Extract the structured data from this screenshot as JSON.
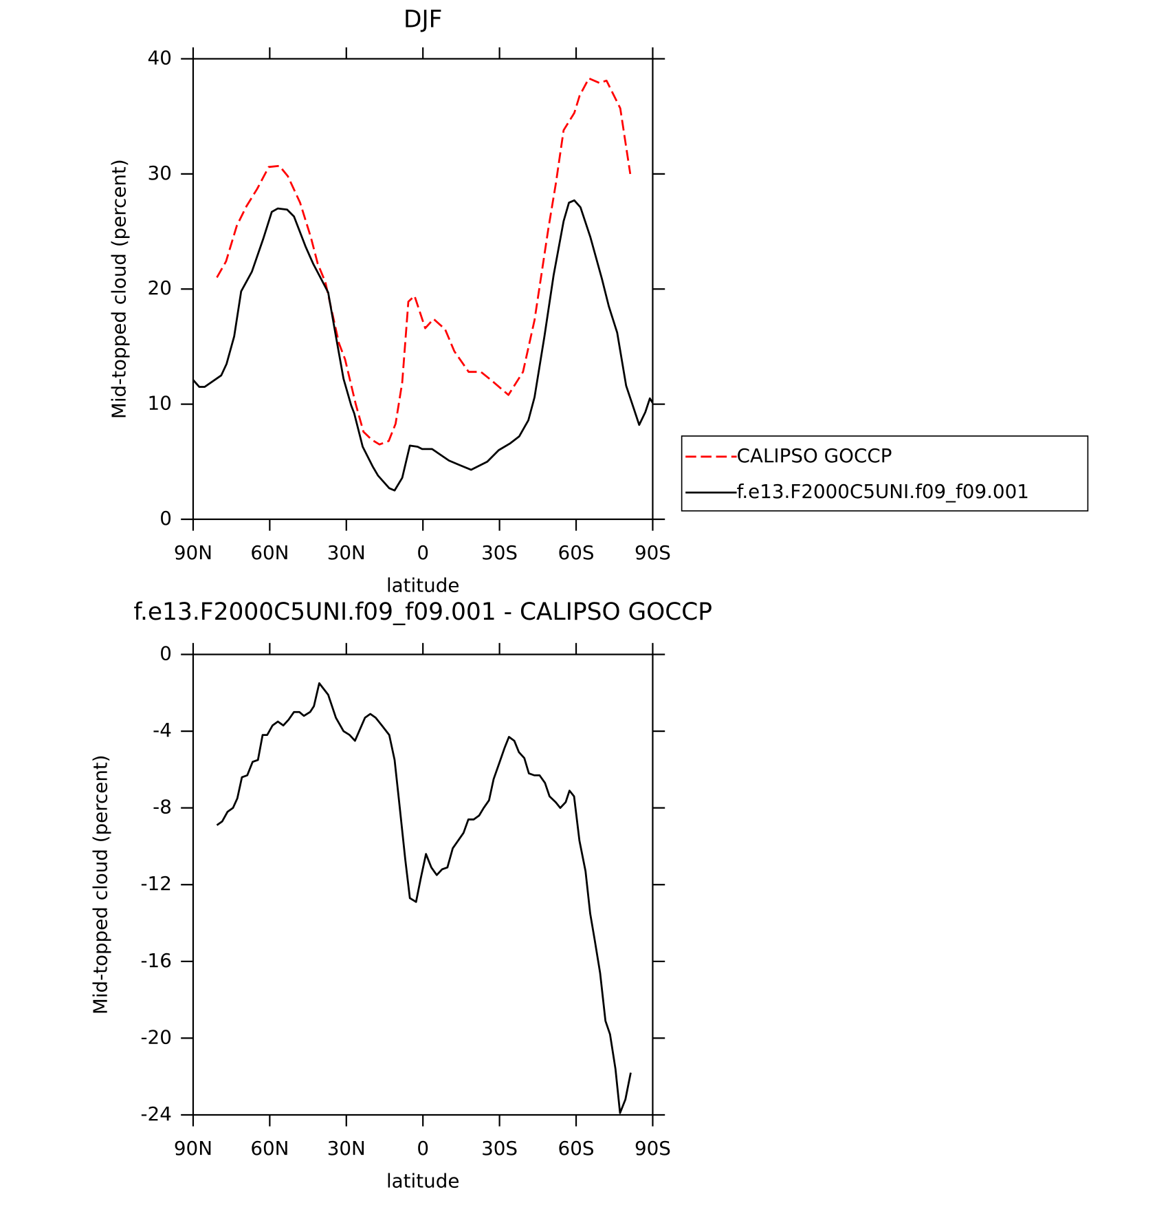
{
  "chart_data": [
    {
      "type": "line",
      "title": "DJF",
      "xlabel": "latitude",
      "ylabel": "Mid-topped cloud (percent)",
      "xlim": [
        90,
        -90
      ],
      "xticks": [
        {
          "value": 90,
          "label": "90N"
        },
        {
          "value": 60,
          "label": "60N"
        },
        {
          "value": 30,
          "label": "30N"
        },
        0,
        {
          "value": -30,
          "label": "30S"
        },
        {
          "value": -60,
          "label": "60S"
        },
        {
          "value": -90,
          "label": "90S"
        }
      ],
      "ylim": [
        0,
        40
      ],
      "yticks": [
        0,
        10,
        20,
        30,
        40
      ],
      "legend": "right",
      "series": [
        {
          "name": "CALIPSO GOCCP",
          "color": "#ff0000",
          "linestyle": "dashed",
          "x": [
            80.7,
            77.1,
            72.9,
            69.1,
            64.9,
            60.4,
            56.2,
            52.9,
            48.1,
            43.9,
            41.2,
            38.2,
            35.2,
            32.9,
            30.5,
            26.3,
            23.3,
            20.0,
            17.0,
            13.4,
            10.7,
            8.1,
            5.7,
            3.3,
            -0.9,
            -4.2,
            -8.7,
            -12.3,
            -17.9,
            -22.7,
            -27.2,
            -33.5,
            -39.2,
            -43.7,
            -49.1,
            -52.1,
            -55.1,
            -59.3,
            -61.4,
            -65.0,
            -69.2,
            -71.9,
            -73.7,
            -77.3,
            -81.2
          ],
          "values": [
            21.0,
            22.4,
            25.5,
            27.2,
            28.7,
            30.6,
            30.7,
            29.8,
            27.5,
            24.5,
            22.2,
            20.6,
            17.6,
            15.3,
            13.9,
            10.0,
            7.6,
            6.9,
            6.5,
            6.8,
            8.3,
            11.9,
            18.9,
            19.4,
            16.6,
            17.4,
            16.5,
            14.6,
            12.8,
            12.8,
            12.0,
            10.8,
            12.8,
            17.3,
            25.2,
            29.2,
            33.8,
            35.3,
            36.8,
            38.3,
            37.9,
            38.1,
            37.3,
            35.7,
            30.0
          ]
        },
        {
          "name": "f.e13.F2000C5UNI.f09_f09.001",
          "color": "#000000",
          "linestyle": "solid",
          "x": [
            90,
            87.6,
            85.5,
            79,
            76.9,
            73.9,
            71.2,
            67,
            62.5,
            59.2,
            56.8,
            53.2,
            50.5,
            46,
            43,
            39.2,
            37.1,
            34.1,
            31.1,
            28.1,
            26.9,
            23.6,
            19.7,
            17.6,
            13.2,
            11.1,
            8.1,
            5.1,
            2.1,
            0.3,
            -3.6,
            -10.2,
            -14.4,
            -18.9,
            -25.2,
            -29.7,
            -34.2,
            -37.7,
            -41.3,
            -43.7,
            -47.6,
            -51.2,
            -55.1,
            -57.2,
            -59.3,
            -61.7,
            -65.6,
            -70.1,
            -72.8,
            -76.1,
            -79.6,
            -82.6,
            -84.7,
            -87.1,
            -88.9,
            -90
          ],
          "values": [
            12.1,
            11.5,
            11.5,
            12.5,
            13.5,
            15.9,
            19.8,
            21.5,
            24.4,
            26.7,
            27.0,
            26.9,
            26.3,
            23.7,
            22.2,
            20.6,
            19.7,
            15.9,
            12.2,
            9.9,
            9.2,
            6.3,
            4.6,
            3.8,
            2.7,
            2.5,
            3.6,
            6.4,
            6.3,
            6.1,
            6.1,
            5.1,
            4.7,
            4.3,
            5.0,
            6.0,
            6.6,
            7.2,
            8.6,
            10.6,
            15.9,
            21.2,
            25.9,
            27.5,
            27.7,
            27.1,
            24.5,
            20.9,
            18.5,
            16.2,
            11.6,
            9.6,
            8.2,
            9.3,
            10.5,
            10.1
          ]
        }
      ]
    },
    {
      "type": "line",
      "title": "f.e13.F2000C5UNI.f09_f09.001 - CALIPSO GOCCP",
      "xlabel": "latitude",
      "ylabel": "Mid-topped cloud (percent)",
      "xlim": [
        90,
        -90
      ],
      "xticks": [
        {
          "value": 90,
          "label": "90N"
        },
        {
          "value": 60,
          "label": "60N"
        },
        {
          "value": 30,
          "label": "30N"
        },
        0,
        {
          "value": -30,
          "label": "30S"
        },
        {
          "value": -60,
          "label": "60S"
        },
        {
          "value": -90,
          "label": "90S"
        }
      ],
      "ylim": [
        -24,
        0
      ],
      "yticks": [
        -24,
        -20,
        -16,
        -12,
        -8,
        -4,
        0
      ],
      "series": [
        {
          "color": "#000000",
          "linestyle": "solid",
          "x": [
            80.7,
            78.6,
            76.5,
            74.4,
            72.7,
            70.9,
            68.8,
            66.7,
            64.6,
            62.8,
            61.0,
            58.9,
            56.8,
            54.7,
            52.6,
            50.5,
            48.4,
            46.6,
            44.2,
            42.7,
            40.6,
            37.1,
            34.1,
            31.1,
            28.7,
            26.6,
            22.7,
            20.6,
            18.5,
            16.1,
            13.2,
            11.1,
            9.3,
            6.9,
            5.1,
            2.7,
            0.9,
            -1.2,
            -3.3,
            -5.4,
            -7.5,
            -9.6,
            -11.7,
            -13.8,
            -15.9,
            -17.8,
            -19.9,
            -22.0,
            -23.8,
            -25.9,
            -27.7,
            -29.8,
            -31.9,
            -33.7,
            -35.8,
            -37.6,
            -39.7,
            -41.5,
            -43.6,
            -45.7,
            -47.8,
            -49.6,
            -52.0,
            -53.8,
            -55.9,
            -57.4,
            -59.2,
            -61.3,
            -63.7,
            -65.5,
            -67.3,
            -69.4,
            -71.5,
            -73.3,
            -75.4,
            -77.2,
            -79.3,
            -81.4
          ],
          "values": [
            -8.9,
            -8.7,
            -8.2,
            -8.0,
            -7.5,
            -6.4,
            -6.3,
            -5.6,
            -5.5,
            -4.2,
            -4.2,
            -3.7,
            -3.5,
            -3.7,
            -3.4,
            -3.0,
            -3.0,
            -3.2,
            -3.0,
            -2.7,
            -1.5,
            -2.1,
            -3.3,
            -4.0,
            -4.2,
            -4.5,
            -3.3,
            -3.1,
            -3.3,
            -3.7,
            -4.2,
            -5.5,
            -7.7,
            -10.7,
            -12.7,
            -12.9,
            -11.7,
            -10.4,
            -11.1,
            -11.5,
            -11.2,
            -11.1,
            -10.1,
            -9.7,
            -9.3,
            -8.6,
            -8.6,
            -8.4,
            -8.0,
            -7.6,
            -6.5,
            -5.7,
            -4.9,
            -4.3,
            -4.5,
            -5.1,
            -5.4,
            -6.2,
            -6.3,
            -6.3,
            -6.7,
            -7.4,
            -7.7,
            -8.0,
            -7.7,
            -7.1,
            -7.4,
            -9.7,
            -11.3,
            -13.5,
            -14.9,
            -16.6,
            -19.1,
            -19.8,
            -21.6,
            -23.9,
            -23.2,
            -21.8
          ]
        }
      ]
    }
  ]
}
